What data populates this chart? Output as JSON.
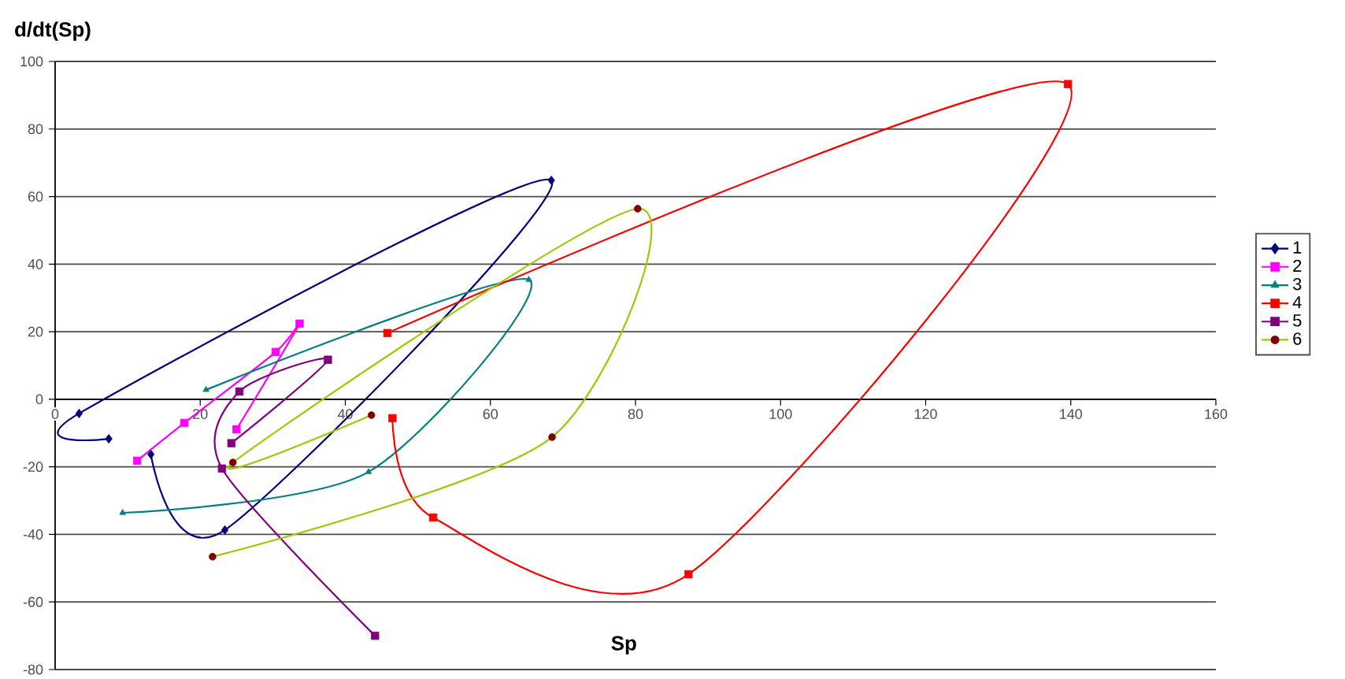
{
  "chart_data": {
    "type": "line",
    "xlabel": "Sp",
    "ylabel": "d/dt(Sp)",
    "xlim": [
      0,
      160
    ],
    "xticks": [
      0,
      20,
      40,
      60,
      80,
      100,
      120,
      140,
      160
    ],
    "ylim": [
      -80,
      100
    ],
    "yticks": [
      -80,
      -60,
      -40,
      -20,
      0,
      20,
      40,
      60,
      80,
      100
    ],
    "grid": "y",
    "legend": "right",
    "series": [
      {
        "name": "1",
        "color": "#000080",
        "marker": "diamond",
        "x": [
          7.4,
          3.3,
          68.4,
          23.4,
          13.2
        ],
        "values": [
          -11.7,
          -4.2,
          64.8,
          -38.7,
          -16.3
        ]
      },
      {
        "name": "2",
        "color": "#ff00ff",
        "marker": "square",
        "x": [
          11.3,
          17.8,
          30.4,
          33.7,
          25
        ],
        "values": [
          -18.2,
          -7,
          14,
          22.4,
          -8.9
        ]
      },
      {
        "name": "3",
        "color": "#008080",
        "marker": "triangle",
        "x": [
          9.3,
          43.2,
          65.3,
          20.8
        ],
        "values": [
          -33.6,
          -21.5,
          35.4,
          2.8
        ]
      },
      {
        "name": "4",
        "color": "#ff0000",
        "marker": "square",
        "x": [
          45.8,
          139.6,
          87.3,
          52.1,
          46.5
        ],
        "values": [
          19.6,
          93.3,
          -51.8,
          -35,
          -5.6
        ]
      },
      {
        "name": "5",
        "color": "#800080",
        "marker": "square",
        "x": [
          24.3,
          37.6,
          25.4,
          23,
          44.1
        ],
        "values": [
          -13,
          11.7,
          2.3,
          -20.5,
          -70
        ]
      },
      {
        "name": "6",
        "color": "#99cc00",
        "colors": [
          "#800000",
          "#800000",
          "#800000",
          "#800000",
          "#800000"
        ],
        "marker": "circle",
        "x": [
          43.6,
          24.5,
          80.3,
          68.5,
          21.7
        ],
        "values": [
          -4.7,
          -18.7,
          56.4,
          -11.2,
          -46.6
        ]
      }
    ]
  }
}
